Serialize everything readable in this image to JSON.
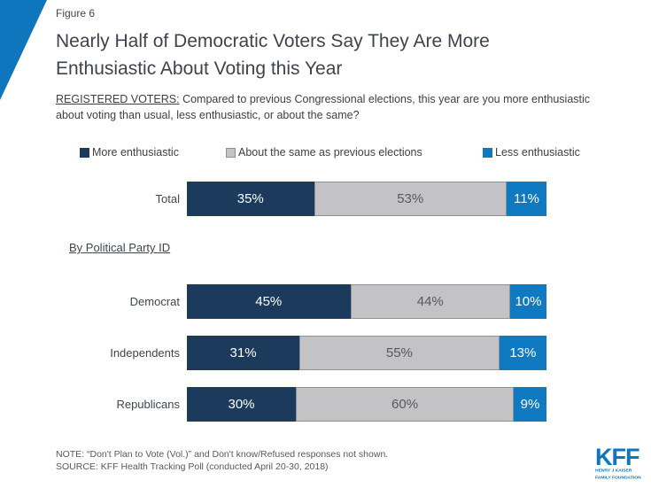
{
  "figure_label": "Figure 6",
  "title_line1": "Nearly Half of Democratic Voters Say They Are More",
  "title_line2": "Enthusiastic About Voting this Year",
  "subtitle_prefix": "REGISTERED VOTERS:",
  "subtitle_rest": " Compared to previous Congressional elections, this year are you more enthusiastic about voting than usual, less enthusiastic, or about the same?",
  "group_header": "By Political Party ID",
  "chart_data": {
    "type": "bar",
    "orientation": "horizontal-stacked",
    "categories": [
      "Total",
      "Democrat",
      "Independents",
      "Republicans"
    ],
    "series": [
      {
        "name": "More enthusiastic",
        "color": "#1b3a5c",
        "text_color": "#ffffff",
        "values": [
          35,
          45,
          31,
          30
        ]
      },
      {
        "name": "About the same as previous elections",
        "color": "#c3c3c5",
        "text_color": "#58595b",
        "border_color": "#8f9194",
        "values": [
          53,
          44,
          55,
          60
        ]
      },
      {
        "name": "Less enthusiastic",
        "color": "#0f7ac1",
        "text_color": "#ffffff",
        "values": [
          11,
          10,
          13,
          9
        ]
      }
    ],
    "value_format": "percent",
    "xlim": [
      0,
      100
    ],
    "legend_position": "top"
  },
  "note": "NOTE: “Don't Plan to Vote (Vol.)” and Don't know/Refused responses not shown.",
  "source": "SOURCE: KFF Health Tracking Poll (conducted April 20-30, 2018)",
  "logo": {
    "text": "KFF",
    "tagline_line1": "HENRY J KAISER",
    "tagline_line2": "FAMILY FOUNDATION"
  },
  "colors": {
    "brand_blue": "#0e76bc",
    "navy": "#1b3a5c",
    "bright_blue": "#0f7ac1",
    "gray_fill": "#c3c3c5",
    "gray_border": "#8f9194",
    "title_text": "#3d444d",
    "body_text": "#3f3f41",
    "muted_text": "#58595b"
  }
}
